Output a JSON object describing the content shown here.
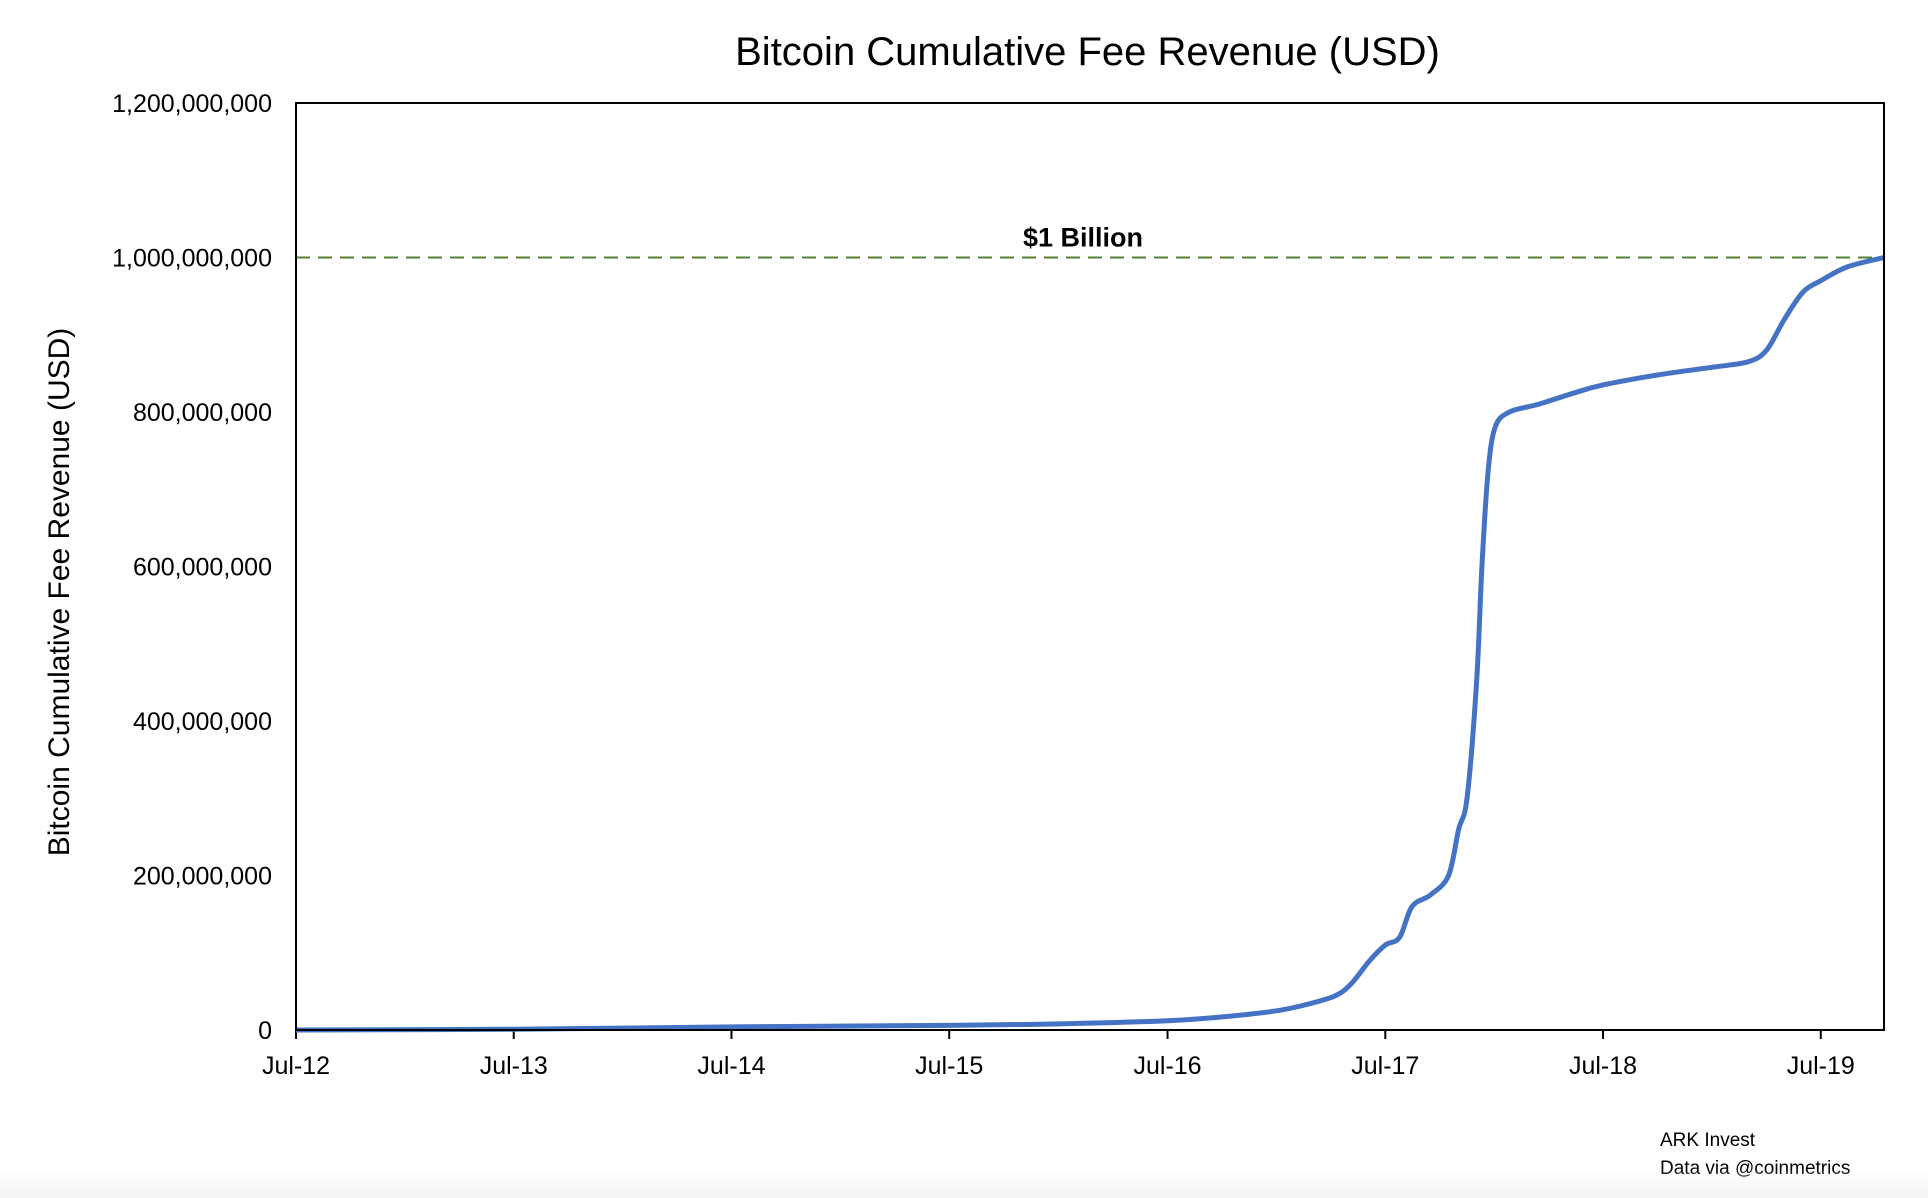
{
  "chart_data": {
    "type": "line",
    "title": "Bitcoin Cumulative Fee Revenue (USD)",
    "xlabel": "",
    "ylabel": "Bitcoin Cumulative Fee Revenue (USD)",
    "xlim": [
      "2012-07-01",
      "2019-10-15"
    ],
    "ylim": [
      0,
      1200000000
    ],
    "x_ticks": [
      "Jul-12",
      "Jul-13",
      "Jul-14",
      "Jul-15",
      "Jul-16",
      "Jul-17",
      "Jul-18",
      "Jul-19"
    ],
    "y_ticks": [
      "0",
      "200,000,000",
      "400,000,000",
      "600,000,000",
      "800,000,000",
      "1,000,000,000",
      "1,200,000,000"
    ],
    "grid": false,
    "series_color": "#4472C4",
    "reference_line": {
      "value": 1000000000,
      "label": "$1 Billion",
      "color": "#548235",
      "style": "dashed"
    },
    "series": [
      {
        "x": [
          "2012-07-01",
          "2013-07-01",
          "2014-07-01",
          "2015-07-01",
          "2016-01-01",
          "2016-07-01",
          "2016-10-01",
          "2017-01-01",
          "2017-03-01",
          "2017-04-10",
          "2017-05-05",
          "2017-06-05",
          "2017-07-01",
          "2017-07-25",
          "2017-08-15",
          "2017-09-15",
          "2017-10-15",
          "2017-11-01",
          "2017-11-15",
          "2017-12-01",
          "2017-12-10",
          "2017-12-20",
          "2018-01-01",
          "2018-01-25",
          "2018-03-15",
          "2018-05-15",
          "2018-07-01",
          "2018-10-01",
          "2019-01-01",
          "2019-03-01",
          "2019-04-01",
          "2019-05-01",
          "2019-06-01",
          "2019-07-01",
          "2019-08-15",
          "2019-10-15"
        ],
        "values": [
          0,
          1000000,
          4000000,
          6000000,
          8000000,
          12000000,
          17000000,
          25000000,
          35000000,
          45000000,
          60000000,
          90000000,
          110000000,
          120000000,
          160000000,
          175000000,
          200000000,
          260000000,
          300000000,
          450000000,
          600000000,
          720000000,
          780000000,
          800000000,
          810000000,
          825000000,
          835000000,
          848000000,
          858000000,
          865000000,
          880000000,
          920000000,
          955000000,
          970000000,
          988000000,
          1000000000
        ]
      }
    ]
  },
  "footer": {
    "source": "ARK Invest",
    "data_credit": "Data via @coinmetrics"
  }
}
